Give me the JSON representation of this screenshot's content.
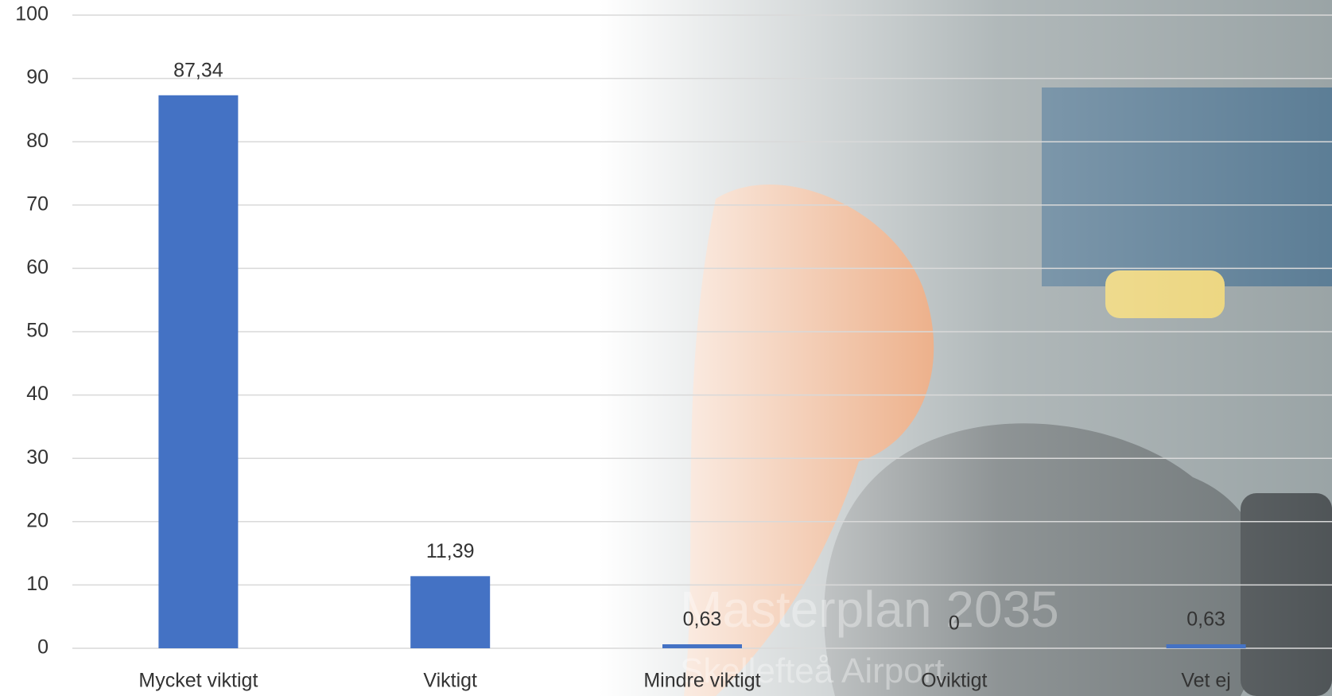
{
  "chart_data": {
    "type": "bar",
    "categories": [
      "Mycket viktigt",
      "Viktigt",
      "Mindre viktigt",
      "Oviktigt",
      "Vet ej"
    ],
    "values": [
      87.34,
      11.39,
      0.63,
      0,
      0.63
    ],
    "value_labels": [
      "87,34",
      "11,39",
      "0,63",
      "0",
      "0,63"
    ],
    "color": "#4472c4",
    "ylim": [
      0,
      100
    ],
    "yticks": [
      0,
      10,
      20,
      30,
      40,
      50,
      60,
      70,
      80,
      90,
      100
    ],
    "grid": true,
    "watermark": [
      "Masterplan 2035",
      "Skellefteå Airport"
    ]
  }
}
